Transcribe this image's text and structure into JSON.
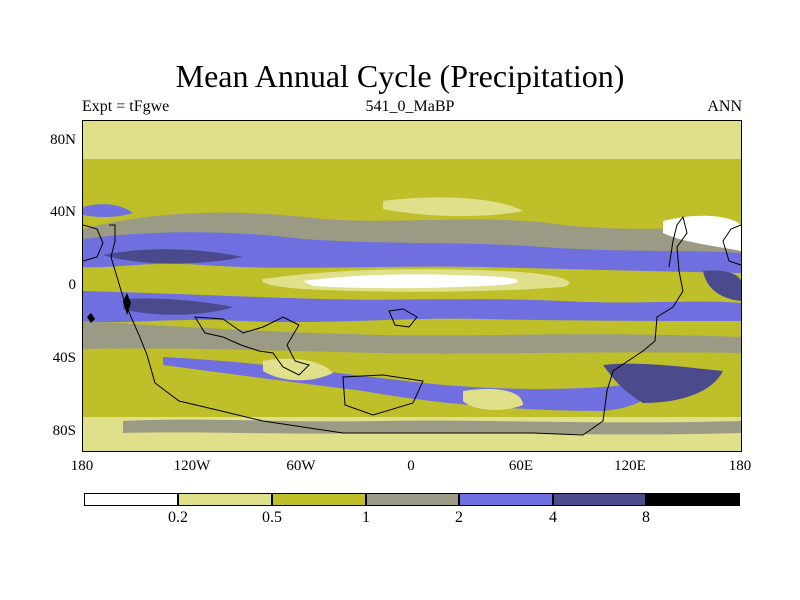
{
  "title": "Mean Annual Cycle (Precipitation)",
  "subtitle_left": "Expt = tFgwe",
  "subtitle_center": "541_0_MaBP",
  "subtitle_right": "ANN",
  "lat_ticks": [
    "80N",
    "40N",
    "0",
    "40S",
    "80S"
  ],
  "lon_ticks": [
    "180",
    "120W",
    "60W",
    "0",
    "60E",
    "120E",
    "180"
  ],
  "colorbar": {
    "colors": [
      "#ffffff",
      "#e0e08a",
      "#bfbf2a",
      "#9b9b85",
      "#6f6fe0",
      "#4a4a8c",
      "#000000"
    ],
    "labels": [
      "0.2",
      "0.5",
      "1",
      "2",
      "4",
      "8"
    ]
  }
}
